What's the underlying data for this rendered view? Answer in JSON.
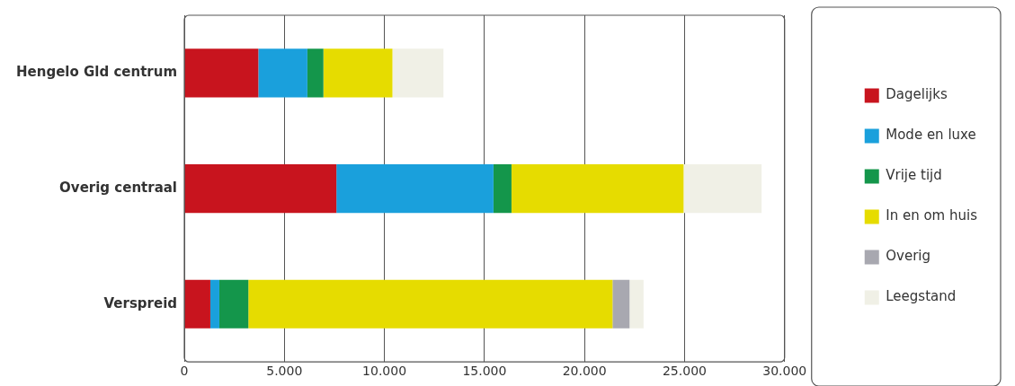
{
  "chart_data": {
    "type": "bar",
    "orientation": "horizontal",
    "stacked": true,
    "categories": [
      "Hengelo Gld centrum",
      "Overig centraal",
      "Verspreid"
    ],
    "series": [
      {
        "name": "Dagelijks",
        "color": "#c8141e",
        "values": [
          3700,
          7600,
          1300
        ]
      },
      {
        "name": "Mode en luxe",
        "color": "#1aa0dc",
        "values": [
          2450,
          7850,
          450
        ]
      },
      {
        "name": "Vrije tijd",
        "color": "#14964b",
        "values": [
          800,
          900,
          1450
        ]
      },
      {
        "name": "In en om huis",
        "color": "#e6dc00",
        "values": [
          3450,
          8600,
          18200
        ]
      },
      {
        "name": "Overig",
        "color": "#a8a8b0",
        "values": [
          0,
          0,
          850
        ]
      },
      {
        "name": "Leegstand",
        "color": "#f0f0e6",
        "values": [
          2550,
          3900,
          700
        ]
      }
    ],
    "xlim": [
      0,
      30000
    ],
    "xticks": [
      {
        "value": 0,
        "label": "0"
      },
      {
        "value": 5000,
        "label": "5.000"
      },
      {
        "value": 10000,
        "label": "10.000"
      },
      {
        "value": 15000,
        "label": "15.000"
      },
      {
        "value": 20000,
        "label": "20.000"
      },
      {
        "value": 25000,
        "label": "25.000"
      },
      {
        "value": 30000,
        "label": "30.000"
      }
    ],
    "grid": "x",
    "legend": "right"
  }
}
